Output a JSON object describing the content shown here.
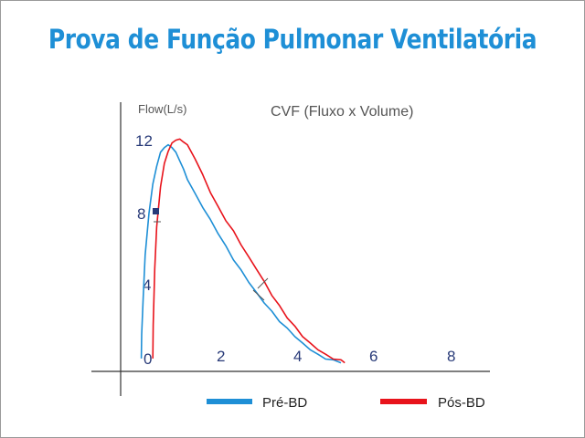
{
  "slide": {
    "title": "Prova de Função Pulmonar Ventilatória",
    "title_color": "#1e8fd6"
  },
  "chart_data": {
    "type": "line",
    "title": "CVF (Fluxo x Volume)",
    "ylabel": "Flow(L/s)",
    "xlabel": "",
    "xlim": [
      0,
      8
    ],
    "ylim": [
      0,
      12.5
    ],
    "x_ticks": [
      "0",
      "2",
      "4",
      "6",
      "8"
    ],
    "y_ticks": [
      "4",
      "8",
      "12"
    ],
    "grid": false,
    "legend_position": "bottom",
    "series": [
      {
        "name": "Pré-BD",
        "color": "#1e8fd6",
        "x": [
          -0.2,
          -0.19,
          -0.15,
          -0.1,
          0.0,
          0.1,
          0.2,
          0.3,
          0.4,
          0.5,
          0.6,
          0.7,
          0.8,
          0.9,
          1.0,
          1.2,
          1.4,
          1.6,
          1.8,
          2.0,
          2.2,
          2.4,
          2.6,
          2.8,
          3.0,
          3.2,
          3.4,
          3.6,
          3.8,
          4.0,
          4.2,
          4.4,
          4.6,
          4.8,
          5.0
        ],
        "y": [
          0.2,
          1.5,
          3.5,
          5.7,
          8.0,
          9.5,
          10.5,
          11.2,
          11.5,
          11.6,
          11.5,
          11.2,
          10.8,
          10.3,
          9.8,
          9.0,
          8.3,
          7.6,
          6.9,
          6.2,
          5.5,
          4.9,
          4.3,
          3.7,
          3.2,
          2.7,
          2.2,
          1.8,
          1.4,
          1.0,
          0.7,
          0.4,
          0.2,
          0.1,
          0.0
        ]
      },
      {
        "name": "Pós-BD",
        "color": "#e8131b",
        "x": [
          0.1,
          0.11,
          0.15,
          0.2,
          0.3,
          0.4,
          0.5,
          0.6,
          0.7,
          0.8,
          0.9,
          1.0,
          1.2,
          1.4,
          1.6,
          1.8,
          2.0,
          2.2,
          2.4,
          2.6,
          2.8,
          3.0,
          3.2,
          3.4,
          3.6,
          3.8,
          4.0,
          4.2,
          4.4,
          4.6,
          4.8,
          5.0,
          5.1
        ],
        "y": [
          0.2,
          2.0,
          5.0,
          7.2,
          9.4,
          10.6,
          11.3,
          11.7,
          11.9,
          11.9,
          11.8,
          11.6,
          10.9,
          10.0,
          9.1,
          8.3,
          7.6,
          7.0,
          6.3,
          5.6,
          5.0,
          4.3,
          3.6,
          3.0,
          2.4,
          1.9,
          1.4,
          1.0,
          0.7,
          0.4,
          0.2,
          0.1,
          0.0
        ]
      }
    ]
  }
}
